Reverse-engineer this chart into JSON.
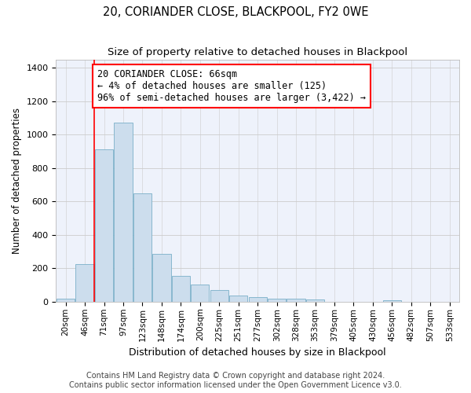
{
  "title": "20, CORIANDER CLOSE, BLACKPOOL, FY2 0WE",
  "subtitle": "Size of property relative to detached houses in Blackpool",
  "xlabel": "Distribution of detached houses by size in Blackpool",
  "ylabel": "Number of detached properties",
  "bar_color": "#ccdded",
  "bar_edge_color": "#7aafc8",
  "background_color": "#eef2fb",
  "grid_color": "#cccccc",
  "categories": [
    "20sqm",
    "46sqm",
    "71sqm",
    "97sqm",
    "123sqm",
    "148sqm",
    "174sqm",
    "200sqm",
    "225sqm",
    "251sqm",
    "277sqm",
    "302sqm",
    "328sqm",
    "353sqm",
    "379sqm",
    "405sqm",
    "430sqm",
    "456sqm",
    "482sqm",
    "507sqm",
    "533sqm"
  ],
  "values": [
    20,
    225,
    910,
    1070,
    650,
    285,
    155,
    105,
    70,
    38,
    28,
    20,
    20,
    15,
    0,
    0,
    0,
    10,
    0,
    0,
    0
  ],
  "ylim": [
    0,
    1450
  ],
  "yticks": [
    0,
    200,
    400,
    600,
    800,
    1000,
    1200,
    1400
  ],
  "property_line_x": 1.5,
  "annotation_title": "20 CORIANDER CLOSE: 66sqm",
  "annotation_line1": "← 4% of detached houses are smaller (125)",
  "annotation_line2": "96% of semi-detached houses are larger (3,422) →",
  "footer_line1": "Contains HM Land Registry data © Crown copyright and database right 2024.",
  "footer_line2": "Contains public sector information licensed under the Open Government Licence v3.0.",
  "title_fontsize": 10.5,
  "subtitle_fontsize": 9.5,
  "annotation_fontsize": 8.5,
  "ylabel_fontsize": 8.5,
  "xlabel_fontsize": 9,
  "footer_fontsize": 7,
  "tick_fontsize": 7.5,
  "ytick_fontsize": 8
}
